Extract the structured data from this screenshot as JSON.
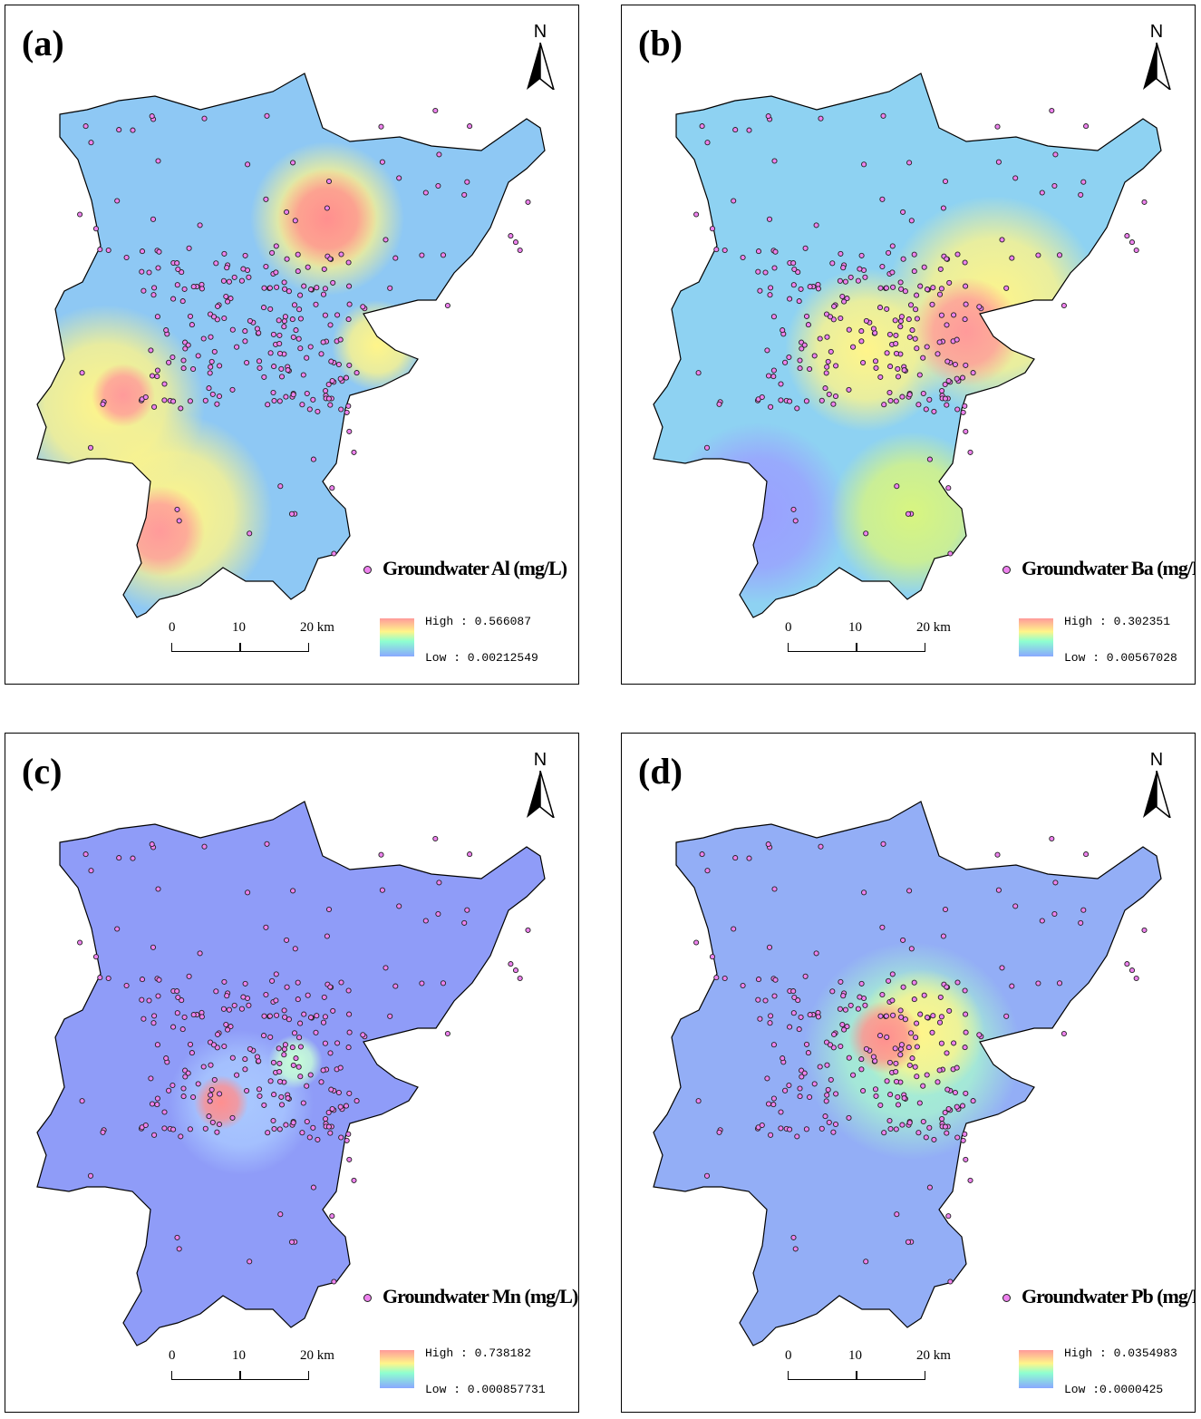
{
  "north_label": "N",
  "scale": {
    "ticks": [
      "0",
      "10",
      "20 km"
    ]
  },
  "colors": {
    "high": "#ff9a9a",
    "mid": "#fff58a",
    "low": "#8aa8ff",
    "sample_point": "#ee82ee",
    "base_a": "#8ec8f4",
    "base_b": "#8ed2f2",
    "base_c": "#8f9cf8",
    "base_d": "#93aef6"
  },
  "panels": [
    {
      "label": "(a)",
      "title": "Groundwater Al (mg/L)",
      "high": "High : 0.566087",
      "low": "Low : 0.00212549"
    },
    {
      "label": "(b)",
      "title": "Groundwater Ba (mg/L)",
      "high": "High : 0.302351",
      "low": "Low : 0.00567028"
    },
    {
      "label": "(c)",
      "title": "Groundwater Mn (mg/L)",
      "high": "High : 0.738182",
      "low": "Low : 0.000857731"
    },
    {
      "label": "(d)",
      "title": "Groundwater Pb (mg/L)",
      "high": "High : 0.0354983",
      "low": "Low :0.0000425"
    }
  ]
}
